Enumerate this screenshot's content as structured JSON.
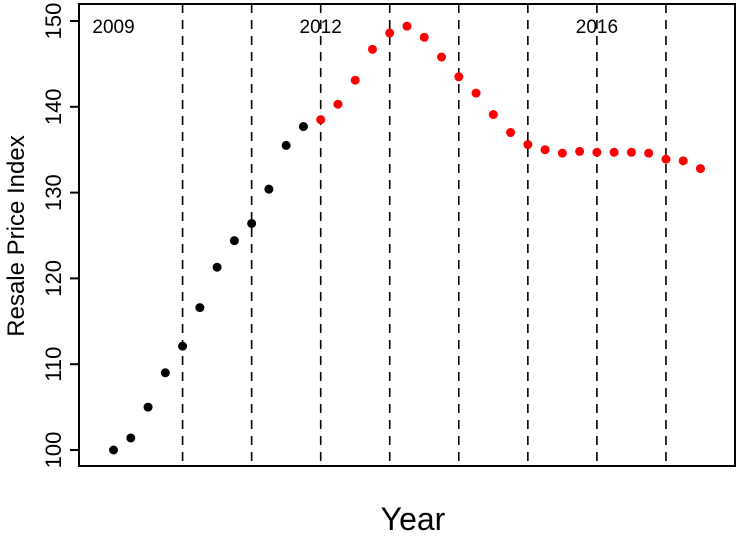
{
  "chart_data": {
    "type": "scatter",
    "xlabel": "Year",
    "ylabel": "Resale Price Index",
    "ylim": [
      100,
      150
    ],
    "yticks": [
      100,
      110,
      120,
      130,
      140,
      150
    ],
    "grid": false,
    "x_range": [
      2008.5,
      2018.0
    ],
    "year_dividers": [
      2010,
      2011,
      2012,
      2013,
      2014,
      2015,
      2016,
      2017,
      2018
    ],
    "annotations": [
      {
        "text": "2009",
        "year": 2009
      },
      {
        "text": "2012",
        "year": 2012
      },
      {
        "text": "2016",
        "year": 2016
      }
    ],
    "series": [
      {
        "color": "#000000",
        "points": [
          [
            2009.0,
            100.0
          ],
          [
            2009.25,
            101.4
          ],
          [
            2009.5,
            105.0
          ],
          [
            2009.75,
            109.0
          ],
          [
            2010.0,
            112.1
          ],
          [
            2010.25,
            116.6
          ],
          [
            2010.5,
            121.3
          ],
          [
            2010.75,
            124.4
          ],
          [
            2011.0,
            126.4
          ],
          [
            2011.25,
            130.4
          ],
          [
            2011.5,
            135.5
          ],
          [
            2011.75,
            137.7
          ]
        ]
      },
      {
        "color": "#ff0000",
        "points": [
          [
            2012.0,
            138.5
          ],
          [
            2012.25,
            140.3
          ],
          [
            2012.5,
            143.1
          ],
          [
            2012.75,
            146.7
          ],
          [
            2013.0,
            148.6
          ],
          [
            2013.25,
            149.4
          ],
          [
            2013.5,
            148.1
          ],
          [
            2013.75,
            145.8
          ],
          [
            2014.0,
            143.5
          ],
          [
            2014.25,
            141.6
          ],
          [
            2014.5,
            139.1
          ],
          [
            2014.75,
            137.0
          ],
          [
            2015.0,
            135.6
          ],
          [
            2015.25,
            135.0
          ],
          [
            2015.5,
            134.6
          ],
          [
            2015.75,
            134.8
          ],
          [
            2016.0,
            134.7
          ],
          [
            2016.25,
            134.7
          ],
          [
            2016.5,
            134.7
          ],
          [
            2016.75,
            134.6
          ],
          [
            2017.0,
            133.9
          ],
          [
            2017.25,
            133.7
          ],
          [
            2017.5,
            132.8
          ]
        ]
      }
    ]
  }
}
